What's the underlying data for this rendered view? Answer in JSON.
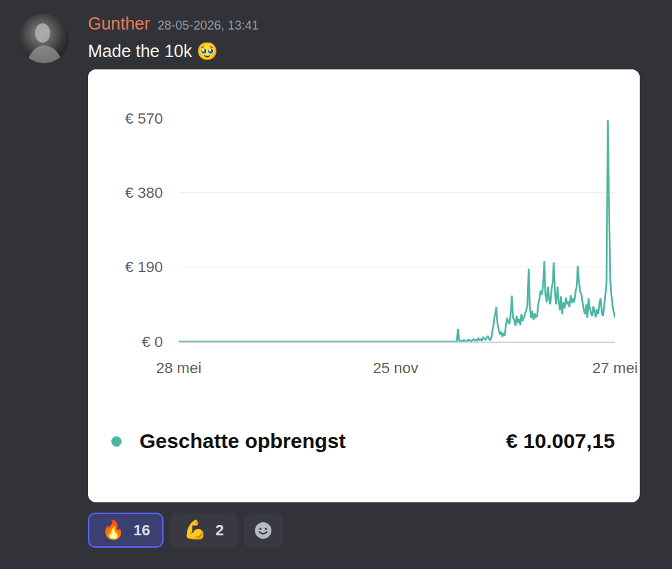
{
  "message": {
    "author": "Gunther",
    "timestamp": "28-05-2026, 13:41",
    "text": "Made the 10k 🥹"
  },
  "chart_data": {
    "type": "line",
    "categories": [
      "28 mei",
      null,
      null,
      null,
      null,
      null,
      null,
      null,
      null,
      null,
      null,
      null,
      null,
      null,
      null,
      null,
      null,
      null,
      null,
      null,
      null,
      null,
      null,
      null,
      null,
      null,
      null,
      null,
      null,
      null,
      null,
      null,
      null,
      null,
      null,
      null,
      null,
      null,
      null,
      null,
      null,
      null,
      null,
      null,
      null,
      null,
      null,
      null,
      null,
      null,
      null,
      null,
      null,
      null,
      null,
      null,
      null,
      null,
      null,
      null,
      null,
      null,
      null,
      null,
      null,
      null,
      null,
      null,
      null,
      null,
      null,
      null,
      null,
      null,
      null,
      null,
      null,
      null,
      null,
      null,
      null,
      null,
      null,
      null,
      null,
      null,
      null,
      null,
      null,
      null,
      null,
      null,
      null,
      null,
      null,
      null,
      null,
      null,
      null,
      null,
      null,
      null,
      null,
      null,
      null,
      null,
      null,
      null,
      null,
      null,
      null,
      null,
      null,
      null,
      null,
      null,
      null,
      null,
      null,
      null,
      null,
      null,
      null,
      null,
      null,
      null,
      null,
      null,
      null,
      null,
      null,
      null,
      null,
      null,
      null,
      null,
      null,
      null,
      null,
      null,
      null,
      null,
      null,
      null,
      null,
      null,
      null,
      null,
      null,
      null,
      null,
      null,
      null,
      null,
      null,
      null,
      null,
      null,
      null,
      null,
      null,
      null,
      null,
      null,
      null,
      null,
      null,
      null,
      null,
      null,
      null,
      null,
      null,
      null,
      null,
      null,
      null,
      null,
      null,
      null,
      null,
      "25 nov",
      null,
      null,
      null,
      null,
      null,
      null,
      null,
      null,
      null,
      null,
      null,
      null,
      null,
      null,
      null,
      null,
      null,
      null,
      null,
      null,
      null,
      null,
      null,
      null,
      null,
      null,
      null,
      null,
      null,
      null,
      null,
      null,
      null,
      null,
      null,
      null,
      null,
      null,
      null,
      null,
      null,
      null,
      null,
      null,
      null,
      null,
      null,
      null,
      null,
      null,
      null,
      null,
      null,
      null,
      null,
      null,
      null,
      null,
      null,
      null,
      null,
      null,
      null,
      null,
      null,
      null,
      null,
      null,
      null,
      null,
      null,
      null,
      null,
      null,
      null,
      null,
      null,
      null,
      null,
      null,
      null,
      null,
      null,
      null,
      null,
      null,
      null,
      null,
      null,
      null,
      null,
      null,
      null,
      null,
      null,
      null,
      null,
      null,
      null,
      null,
      null,
      null,
      null,
      null,
      null,
      null,
      null,
      null,
      null,
      null,
      null,
      null,
      null,
      null,
      null,
      null,
      null,
      null,
      null,
      null,
      null,
      null,
      null,
      null,
      null,
      null,
      null,
      null,
      null,
      null,
      null,
      null,
      null,
      null,
      null,
      null,
      null,
      null,
      null,
      null,
      null,
      null,
      null,
      null,
      null,
      null,
      null,
      null,
      null,
      null,
      null,
      null,
      null,
      null,
      null,
      null,
      null,
      null,
      null,
      null,
      null,
      null,
      null,
      null,
      null,
      null,
      null,
      null,
      null,
      null,
      null,
      null,
      null,
      null,
      null,
      null,
      null,
      null,
      null,
      null,
      null,
      null,
      "27 mei"
    ],
    "series": [
      {
        "name": "Geschatte opbrengst",
        "color": "#4db6a4",
        "values": [
          0,
          0,
          0,
          0,
          0,
          0,
          0,
          0,
          0,
          0,
          0,
          0,
          0,
          0,
          0,
          0,
          0,
          0,
          0,
          0,
          0,
          0,
          0,
          0,
          0,
          0,
          0,
          0,
          0,
          0,
          0,
          0,
          0,
          0,
          0,
          0,
          0,
          0,
          0,
          0,
          0,
          0,
          0,
          0,
          0,
          0,
          0,
          0,
          0,
          0,
          0,
          0,
          0,
          0,
          0,
          0,
          0,
          0,
          0,
          0,
          0,
          0,
          0,
          0,
          0,
          0,
          0,
          0,
          0,
          0,
          0,
          0,
          0,
          0,
          0,
          0,
          0,
          0,
          0,
          0,
          0,
          0,
          0,
          0,
          0,
          0,
          0,
          0,
          0,
          0,
          0,
          0,
          0,
          0,
          0,
          0,
          0,
          0,
          0,
          0,
          0,
          0,
          0,
          0,
          0,
          0,
          0,
          0,
          0,
          0,
          0,
          0,
          0,
          0,
          0,
          0,
          0,
          0,
          0,
          0,
          0,
          0,
          0,
          0,
          0,
          0,
          0,
          0,
          0,
          0,
          0,
          0,
          0,
          0,
          0,
          0,
          0,
          0,
          0,
          0,
          0,
          0,
          0,
          0,
          0,
          0,
          0,
          0,
          0,
          0,
          0,
          0,
          0,
          0,
          0,
          0,
          0,
          0,
          0,
          0,
          0,
          0,
          0,
          0,
          0,
          0,
          0,
          0,
          0,
          0,
          0,
          0,
          0,
          0,
          0,
          0,
          0,
          0,
          0,
          0,
          0,
          0,
          0,
          0,
          0,
          0,
          0,
          0,
          0,
          0,
          0,
          0,
          0,
          0,
          0,
          0,
          0,
          0,
          0,
          0,
          0,
          0,
          0,
          0,
          0,
          0,
          0,
          0,
          0,
          0,
          0,
          0,
          0,
          0,
          0,
          0,
          0,
          0,
          0,
          0,
          0,
          0,
          0,
          0,
          0,
          0,
          0,
          0,
          0,
          0,
          0,
          0,
          0,
          32,
          3,
          0,
          2,
          0,
          4,
          1,
          0,
          3,
          5,
          2,
          0,
          4,
          6,
          3,
          5,
          2,
          8,
          4,
          6,
          3,
          10,
          7,
          5,
          9,
          14,
          6,
          4,
          12,
          30,
          55,
          70,
          88,
          45,
          30,
          18,
          25,
          12,
          22,
          15,
          40,
          60,
          50,
          45,
          70,
          117,
          60,
          55,
          40,
          65,
          48,
          58,
          42,
          70,
          52,
          62,
          68,
          80,
          95,
          186,
          90,
          60,
          78,
          55,
          72,
          62,
          65,
          95,
          110,
          130,
          120,
          140,
          205,
          120,
          100,
          140,
          110,
          95,
          130,
          150,
          202,
          120,
          95,
          140,
          105,
          80,
          115,
          70,
          100,
          85,
          112,
          95,
          102,
          88,
          118,
          98,
          110,
          100,
          125,
          140,
          193,
          150,
          128,
          120,
          100,
          80,
          70,
          95,
          60,
          110,
          85,
          72,
          65,
          90,
          78,
          62,
          82,
          70,
          95,
          110,
          75,
          65,
          90,
          120,
          150,
          565,
          330,
          160,
          120,
          90,
          75,
          61
        ]
      }
    ],
    "ylim": [
      0,
      570
    ],
    "yticks": [
      {
        "value": 0,
        "label": "€ 0"
      },
      {
        "value": 190,
        "label": "€ 190"
      },
      {
        "value": 380,
        "label": "€ 380"
      },
      {
        "value": 570,
        "label": "€ 570"
      }
    ],
    "grid": true,
    "legend": "bottom",
    "annotations": [
      {
        "text": "€ 10.007,15"
      }
    ]
  },
  "reactions": [
    {
      "emoji": "🔥",
      "count": 16,
      "selected": true
    },
    {
      "emoji": "💪",
      "count": 2,
      "selected": false
    }
  ]
}
